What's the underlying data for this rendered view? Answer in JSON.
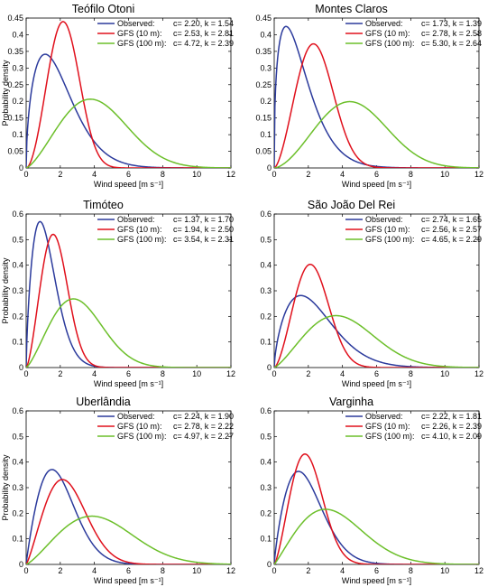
{
  "colors": {
    "observed": "#2b3a9c",
    "gfs10": "#e0101c",
    "gfs100": "#6cbf2a"
  },
  "chart_data": [
    {
      "type": "line",
      "title": "Teófilo Otoni",
      "xlabel": "Wind speed [m s⁻¹]",
      "ylabel": "Probability density",
      "xlim": [
        0,
        12
      ],
      "ylim": [
        0,
        0.45
      ],
      "xticks": [
        0,
        2,
        4,
        6,
        8,
        10,
        12
      ],
      "yticks": [
        0,
        0.05,
        0.1,
        0.15,
        0.2,
        0.25,
        0.3,
        0.35,
        0.4,
        0.45
      ],
      "grid": false,
      "legend": "top-right",
      "series": [
        {
          "name": "Observed:",
          "params": "c= 2.20, k = 1.54",
          "c": 2.2,
          "k": 1.54,
          "color_key": "observed"
        },
        {
          "name": "GFS (10 m):",
          "params": "c= 2.53, k = 2.81",
          "c": 2.53,
          "k": 2.81,
          "color_key": "gfs10"
        },
        {
          "name": "GFS (100 m):",
          "params": "c= 4.72, k = 2.39",
          "c": 4.72,
          "k": 2.39,
          "color_key": "gfs100"
        }
      ]
    },
    {
      "type": "line",
      "title": "Montes Claros",
      "xlabel": "Wind speed [m s⁻¹]",
      "ylabel": "",
      "xlim": [
        0,
        12
      ],
      "ylim": [
        0,
        0.45
      ],
      "xticks": [
        0,
        2,
        4,
        6,
        8,
        10,
        12
      ],
      "yticks": [
        0,
        0.05,
        0.1,
        0.15,
        0.2,
        0.25,
        0.3,
        0.35,
        0.4,
        0.45
      ],
      "grid": false,
      "legend": "top-right",
      "series": [
        {
          "name": "Observed:",
          "params": "c= 1.73, k = 1.39",
          "c": 1.73,
          "k": 1.39,
          "color_key": "observed"
        },
        {
          "name": "GFS (10 m):",
          "params": "c= 2.78, k = 2.58",
          "c": 2.78,
          "k": 2.58,
          "color_key": "gfs10"
        },
        {
          "name": "GFS (100 m):",
          "params": "c= 5.30, k = 2.64",
          "c": 5.3,
          "k": 2.64,
          "color_key": "gfs100"
        }
      ]
    },
    {
      "type": "line",
      "title": "Timóteo",
      "xlabel": "Wind speed [m s⁻¹]",
      "ylabel": "Probability density",
      "xlim": [
        0,
        12
      ],
      "ylim": [
        0,
        0.6
      ],
      "xticks": [
        0,
        2,
        4,
        6,
        8,
        10,
        12
      ],
      "yticks": [
        0,
        0.1,
        0.2,
        0.3,
        0.4,
        0.5,
        0.6
      ],
      "grid": false,
      "legend": "top-right",
      "series": [
        {
          "name": "Observed:",
          "params": "c= 1.37, k = 1.70",
          "c": 1.37,
          "k": 1.7,
          "color_key": "observed"
        },
        {
          "name": "GFS (10 m):",
          "params": "c= 1.94, k = 2.50",
          "c": 1.94,
          "k": 2.5,
          "color_key": "gfs10"
        },
        {
          "name": "GFS (100 m):",
          "params": "c= 3.54, k = 2.31",
          "c": 3.54,
          "k": 2.31,
          "color_key": "gfs100"
        }
      ]
    },
    {
      "type": "line",
      "title": "São João Del Rei",
      "xlabel": "Wind speed [m s⁻¹]",
      "ylabel": "",
      "xlim": [
        0,
        12
      ],
      "ylim": [
        0,
        0.6
      ],
      "xticks": [
        0,
        2,
        4,
        6,
        8,
        10,
        12
      ],
      "yticks": [
        0,
        0.1,
        0.2,
        0.3,
        0.4,
        0.5,
        0.6
      ],
      "grid": false,
      "legend": "top-right",
      "series": [
        {
          "name": "Observed:",
          "params": "c= 2.74, k = 1.65",
          "c": 2.74,
          "k": 1.65,
          "color_key": "observed"
        },
        {
          "name": "GFS (10 m):",
          "params": "c= 2.56, k = 2.57",
          "c": 2.56,
          "k": 2.57,
          "color_key": "gfs10"
        },
        {
          "name": "GFS (100 m):",
          "params": "c= 4.65, k = 2.29",
          "c": 4.65,
          "k": 2.29,
          "color_key": "gfs100"
        }
      ]
    },
    {
      "type": "line",
      "title": "Uberlândia",
      "xlabel": "Wind speed [m s⁻¹]",
      "ylabel": "Probability density",
      "xlim": [
        0,
        12
      ],
      "ylim": [
        0,
        0.6
      ],
      "xticks": [
        0,
        2,
        4,
        6,
        8,
        10,
        12
      ],
      "yticks": [
        0,
        0.1,
        0.2,
        0.3,
        0.4,
        0.5,
        0.6
      ],
      "grid": false,
      "legend": "top-right",
      "series": [
        {
          "name": "Observed:",
          "params": "c= 2.24, k = 1.90",
          "c": 2.24,
          "k": 1.9,
          "color_key": "observed"
        },
        {
          "name": "GFS (10 m):",
          "params": "c= 2.78, k = 2.22",
          "c": 2.78,
          "k": 2.22,
          "color_key": "gfs10"
        },
        {
          "name": "GFS (100 m):",
          "params": "c= 4.97, k = 2.27",
          "c": 4.97,
          "k": 2.27,
          "color_key": "gfs100"
        }
      ]
    },
    {
      "type": "line",
      "title": "Varginha",
      "xlabel": "Wind speed [m s⁻¹]",
      "ylabel": "",
      "xlim": [
        0,
        12
      ],
      "ylim": [
        0,
        0.6
      ],
      "xticks": [
        0,
        2,
        4,
        6,
        8,
        10,
        12
      ],
      "yticks": [
        0,
        0.1,
        0.2,
        0.3,
        0.4,
        0.5,
        0.6
      ],
      "grid": false,
      "legend": "top-right",
      "series": [
        {
          "name": "Observed:",
          "params": "c= 2.22, k = 1.81",
          "c": 2.22,
          "k": 1.81,
          "color_key": "observed"
        },
        {
          "name": "GFS (10 m):",
          "params": "c= 2.26, k = 2.39",
          "c": 2.26,
          "k": 2.39,
          "color_key": "gfs10"
        },
        {
          "name": "GFS (100 m):",
          "params": "c= 4.10, k = 2.09",
          "c": 4.1,
          "k": 2.09,
          "color_key": "gfs100"
        }
      ]
    }
  ]
}
